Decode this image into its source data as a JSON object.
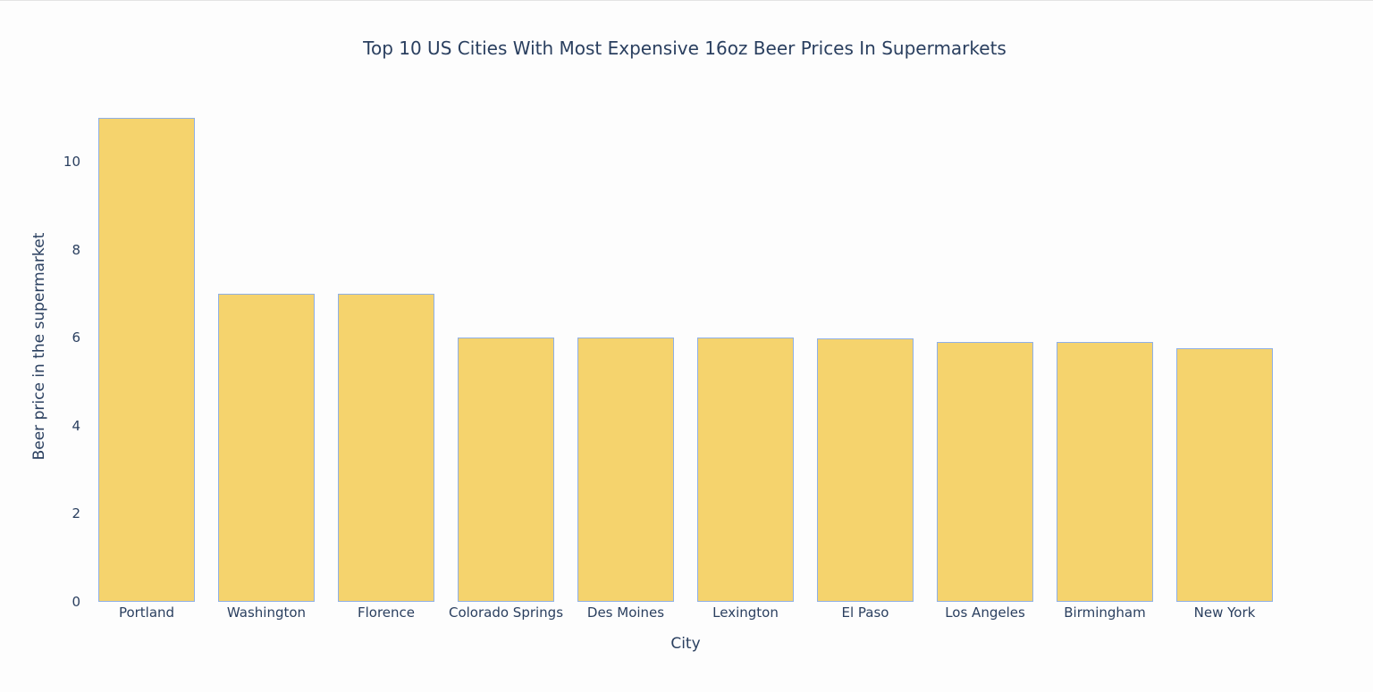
{
  "chart_data": {
    "type": "bar",
    "title": "Top 10 US Cities With Most Expensive 16oz Beer Prices In Supermarkets",
    "xlabel": "City",
    "ylabel": "Beer price in the supermarket",
    "categories": [
      "Portland",
      "Washington",
      "Florence",
      "Colorado Springs",
      "Des Moines",
      "Lexington",
      "El Paso",
      "Los Angeles",
      "Birmingham",
      "New York"
    ],
    "values": [
      11.0,
      7.0,
      7.0,
      6.0,
      6.0,
      6.0,
      5.98,
      5.9,
      5.9,
      5.76
    ],
    "yticks": [
      0,
      2,
      4,
      6,
      8,
      10
    ],
    "ylim": [
      0,
      11.64
    ],
    "grid": false,
    "legend": false,
    "colors": {
      "bar_fill": "#f5d36d",
      "bar_edge": "#8fb0e6"
    }
  }
}
